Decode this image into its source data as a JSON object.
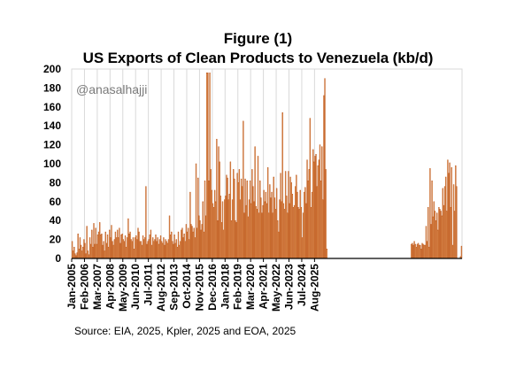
{
  "figure_label": "Figure (1)",
  "watermark": "@anasalhajji",
  "source": "Source: EIA, 2025, Kpler, 2025 and EOA, 2025",
  "colors": {
    "bar_fill": "#E8A66E",
    "bar_stroke": "#B94E0F",
    "grid": "#D9D9D9",
    "axis": "#000000"
  },
  "chart_data": {
    "type": "bar",
    "title": "US Exports of Clean Products to Venezuela (kb/d)",
    "xlabel": "",
    "ylabel": "",
    "ylim": [
      0,
      200
    ],
    "y_ticks": [
      0,
      20,
      40,
      60,
      80,
      100,
      120,
      140,
      160,
      180,
      200
    ],
    "grid": "vertical gridlines at year ticks",
    "x_tick_labels": [
      "Jan-2005",
      "Feb-2006",
      "Mar-2007",
      "Apr-2008",
      "May-2009",
      "Jun-2010",
      "Jul-2011",
      "Aug-2012",
      "Sep-2013",
      "Oct-2014",
      "Nov-2015",
      "Dec-2016",
      "Jan-2018",
      "Feb-2019",
      "Mar-2020",
      "Apr-2021",
      "May-2022",
      "Jun-2023",
      "Jul-2024",
      "Aug-2025"
    ],
    "start_month": "Jan-2005",
    "values": [
      18,
      8,
      12,
      5,
      3,
      6,
      26,
      10,
      22,
      14,
      8,
      12,
      20,
      16,
      5,
      34,
      8,
      4,
      22,
      15,
      30,
      12,
      37,
      15,
      32,
      15,
      25,
      28,
      38,
      25,
      26,
      14,
      18,
      8,
      28,
      16,
      25,
      12,
      30,
      22,
      35,
      18,
      14,
      20,
      28,
      22,
      30,
      22,
      32,
      16,
      25,
      26,
      20,
      18,
      24,
      12,
      22,
      42,
      26,
      28,
      20,
      18,
      22,
      10,
      22,
      24,
      20,
      32,
      28,
      18,
      18,
      14,
      24,
      20,
      22,
      76,
      15,
      18,
      20,
      25,
      30,
      14,
      22,
      18,
      20,
      25,
      18,
      22,
      15,
      20,
      24,
      18,
      16,
      22,
      14,
      20,
      18,
      16,
      20,
      45,
      25,
      28,
      18,
      15,
      25,
      16,
      20,
      12,
      28,
      14,
      18,
      30,
      32,
      22,
      26,
      18,
      36,
      28,
      32,
      20,
      70,
      36,
      34,
      28,
      32,
      22,
      100,
      32,
      85,
      45,
      40,
      30,
      36,
      60,
      28,
      82,
      45,
      196,
      196,
      82,
      196,
      94,
      72,
      58,
      54,
      72,
      60,
      126,
      40,
      118,
      102,
      66,
      38,
      60,
      30,
      62,
      66,
      88,
      85,
      62,
      68,
      102,
      40,
      62,
      94,
      84,
      40,
      38,
      90,
      80,
      94,
      62,
      84,
      76,
      145,
      48,
      84,
      56,
      82,
      44,
      62,
      82,
      58,
      94,
      76,
      60,
      118,
      55,
      52,
      108,
      48,
      82,
      64,
      48,
      56,
      72,
      60,
      70,
      58,
      96,
      48,
      78,
      64,
      70,
      48,
      86,
      64,
      52,
      74,
      40,
      28,
      62,
      90,
      60,
      154,
      58,
      52,
      92,
      66,
      48,
      92,
      58,
      86,
      80,
      68,
      54,
      56,
      76,
      88,
      70,
      54,
      52,
      72,
      54,
      22,
      48,
      70,
      75,
      58,
      104,
      82,
      94,
      148,
      54,
      70,
      115,
      102,
      108,
      110,
      76,
      98,
      104,
      120,
      82,
      118,
      62,
      172,
      190,
      94,
      10,
      0,
      0,
      0,
      0,
      0,
      0,
      0,
      0,
      0,
      0,
      0,
      0,
      0,
      0,
      0,
      0,
      0,
      0,
      0,
      0,
      0,
      0,
      0,
      0,
      0,
      0,
      0,
      0,
      0,
      0,
      0,
      0,
      0,
      0,
      0,
      0,
      0,
      0,
      0,
      0,
      0,
      0,
      0,
      0,
      0,
      0,
      0,
      0,
      0,
      0,
      0,
      0,
      0,
      0,
      0,
      0,
      0,
      0,
      0,
      0,
      0,
      0,
      0,
      0,
      0,
      0,
      0,
      0,
      0,
      0,
      0,
      0,
      0,
      0,
      0,
      0,
      0,
      0,
      0,
      0,
      0,
      0,
      0,
      0,
      0,
      15,
      16,
      14,
      18,
      15,
      12,
      15,
      16,
      14,
      14,
      10,
      16,
      15,
      14,
      14,
      34,
      18,
      54,
      12,
      95,
      36,
      82,
      44,
      60,
      50,
      40,
      48,
      30,
      54,
      52,
      50,
      45,
      74,
      56,
      76,
      86,
      50,
      104,
      90,
      101,
      54,
      96,
      14,
      78,
      50,
      98,
      76,
      0,
      0,
      0,
      2,
      13
    ]
  }
}
